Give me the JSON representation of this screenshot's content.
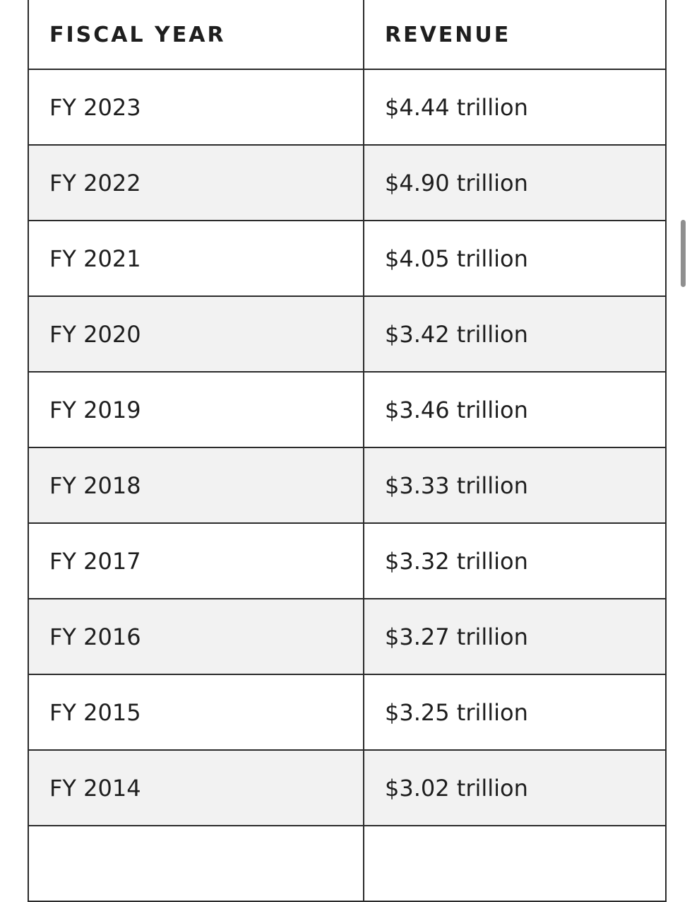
{
  "table": {
    "headers": [
      "FISCAL YEAR",
      "REVENUE"
    ],
    "rows": [
      {
        "year": "FY 2023",
        "revenue": "$4.44 trillion"
      },
      {
        "year": "FY 2022",
        "revenue": "$4.90 trillion"
      },
      {
        "year": "FY 2021",
        "revenue": "$4.05 trillion"
      },
      {
        "year": "FY 2020",
        "revenue": "$3.42 trillion"
      },
      {
        "year": "FY 2019",
        "revenue": "$3.46 trillion"
      },
      {
        "year": "FY 2018",
        "revenue": "$3.33 trillion"
      },
      {
        "year": "FY 2017",
        "revenue": "$3.32 trillion"
      },
      {
        "year": "FY 2016",
        "revenue": "$3.27 trillion"
      },
      {
        "year": "FY 2015",
        "revenue": "$3.25 trillion"
      },
      {
        "year": "FY 2014",
        "revenue": "$3.02 trillion"
      }
    ]
  },
  "colors": {
    "row_alt": "#f2f2f2",
    "border": "#2b2b2b",
    "text": "#1e1e1e",
    "scrollbar": "#8f8f8f"
  }
}
